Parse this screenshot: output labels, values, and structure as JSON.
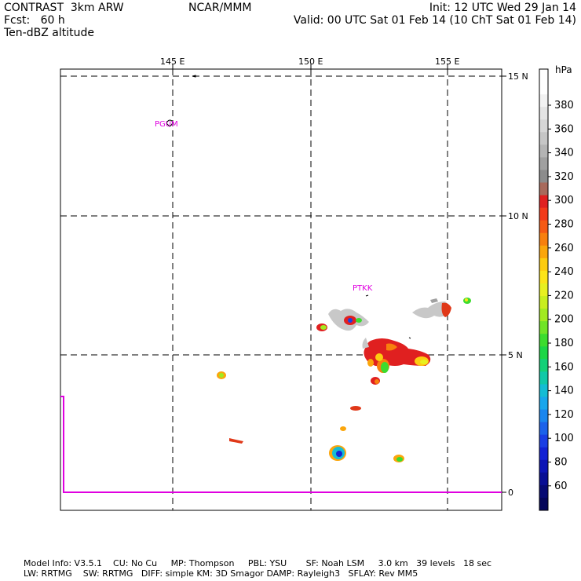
{
  "header": {
    "left_line1": "CONTRAST  3km ARW",
    "left_line2": "Fcst:   60 h",
    "left_line3": "Ten-dBZ altitude",
    "center": "NCAR/MMM",
    "right_line1": "Init: 12 UTC Wed 29 Jan 14",
    "right_line2": "Valid: 00 UTC Sat 01 Feb 14 (10 ChT Sat 01 Feb 14)"
  },
  "map": {
    "lon_labels": [
      "145 E",
      "150 E",
      "155 E"
    ],
    "lat_labels": [
      "15 N",
      "10 N",
      "5 N",
      "0"
    ],
    "stations": [
      "PGUM",
      "PTKK"
    ]
  },
  "colorbar": {
    "unit": "hPa",
    "tick_labels": [
      "380",
      "360",
      "340",
      "320",
      "300",
      "280",
      "260",
      "240",
      "220",
      "200",
      "180",
      "160",
      "140",
      "120",
      "100",
      "80",
      "60"
    ],
    "colors": [
      "#ffffff",
      "#ffffff",
      "#f2f2f2",
      "#e4e4e4",
      "#d6d6d6",
      "#c6c6c6",
      "#b4b4b4",
      "#a0a0a0",
      "#8c8c8c",
      "#a86a5c",
      "#e02020",
      "#f23a1a",
      "#f55a14",
      "#f8800e",
      "#fba60c",
      "#fdcc10",
      "#fce418",
      "#e8f020",
      "#c8ee1e",
      "#a2ea20",
      "#70e426",
      "#3cdc2e",
      "#1cd646",
      "#14d078",
      "#10c8a8",
      "#14bcd4",
      "#18a6ec",
      "#1a86ee",
      "#1c62ea",
      "#1a3ee4",
      "#1222d4",
      "#0c14b6",
      "#080e94",
      "#060a74",
      "#04065a"
    ]
  },
  "footer": {
    "line1": "Model Info: V3.5.1    CU: No Cu     MP: Thompson     PBL: YSU       SF: Noah LSM     3.0 km   39 levels   18 sec",
    "line2": "LW: RRTMG    SW: RRTMG   DIFF: simple KM: 3D Smagor DAMP: Rayleigh3   SFLAY: Rev MM5"
  }
}
